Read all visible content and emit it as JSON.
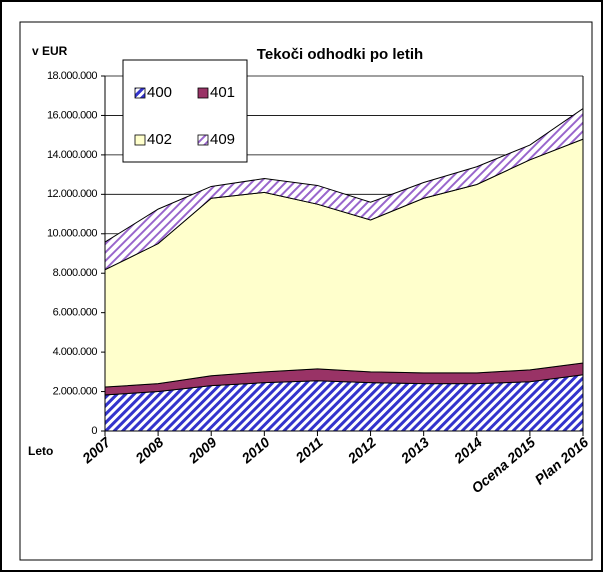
{
  "chart_data": {
    "type": "stacked_area",
    "title": "Tekoči odhodki po letih",
    "y_label": "v EUR",
    "x_label": "Leto",
    "categories": [
      "2007",
      "2008",
      "2009",
      "2010",
      "2011",
      "2012",
      "2013",
      "2014",
      "Ocena 2015",
      "Plan 2016"
    ],
    "series": [
      {
        "name": "400",
        "color": "#3333cc",
        "values": [
          1830000,
          2000000,
          2300000,
          2450000,
          2550000,
          2450000,
          2400000,
          2400000,
          2500000,
          2850000
        ]
      },
      {
        "name": "401",
        "color": "#993366",
        "values": [
          400000,
          400000,
          500000,
          550000,
          600000,
          550000,
          550000,
          550000,
          600000,
          600000
        ]
      },
      {
        "name": "402",
        "color": "#ffffcc",
        "values": [
          5950000,
          7100000,
          9000000,
          9100000,
          8350000,
          7700000,
          8850000,
          9550000,
          10650000,
          11350000
        ]
      },
      {
        "name": "409",
        "color": "#9966cc",
        "values": [
          1400000,
          1750000,
          600000,
          700000,
          950000,
          900000,
          800000,
          900000,
          750000,
          1550000
        ]
      }
    ],
    "ylim": [
      0,
      18000000
    ],
    "yticks": [
      0,
      {
        "value": 2000000,
        "label": "2.000.000"
      },
      {
        "value": 4000000,
        "label": "4.000.000"
      },
      {
        "value": 6000000,
        "label": "6.000.000"
      },
      {
        "value": 8000000,
        "label": "8.000.000"
      },
      {
        "value": 10000000,
        "label": "10.000.000"
      },
      {
        "value": 12000000,
        "label": "12.000.000"
      },
      {
        "value": 14000000,
        "label": "14.000.000"
      },
      {
        "value": 16000000,
        "label": "16.000.000"
      },
      {
        "value": 18000000,
        "label": "18.000.000"
      }
    ],
    "grid": true
  }
}
